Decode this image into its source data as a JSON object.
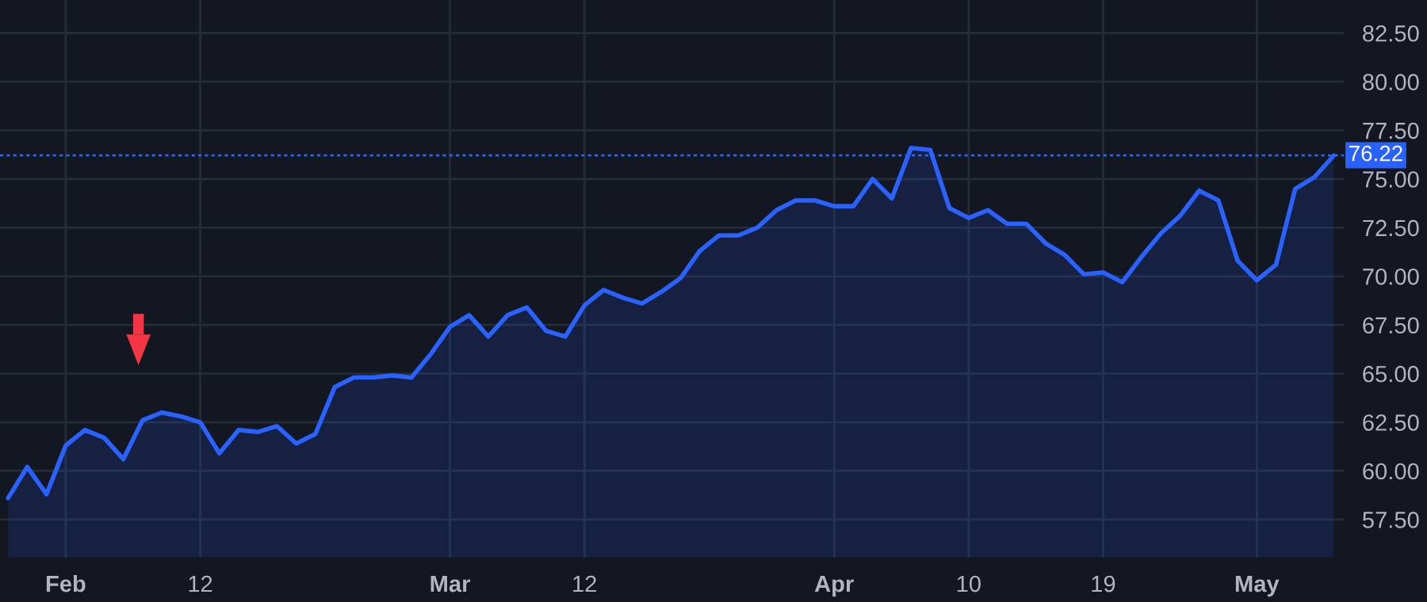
{
  "chart_data": {
    "type": "area",
    "categories": [
      null,
      null,
      null,
      "Feb",
      null,
      null,
      null,
      null,
      null,
      null,
      "12",
      null,
      null,
      null,
      null,
      null,
      null,
      null,
      null,
      null,
      null,
      null,
      null,
      "Mar",
      null,
      null,
      null,
      null,
      null,
      null,
      "12",
      null,
      null,
      null,
      null,
      null,
      null,
      null,
      null,
      null,
      null,
      null,
      null,
      "Apr",
      null,
      null,
      null,
      null,
      null,
      null,
      "10",
      null,
      null,
      null,
      null,
      null,
      null,
      "19",
      null,
      null,
      null,
      null,
      null,
      null,
      null,
      "May",
      null,
      null,
      null,
      null
    ],
    "series": [
      {
        "color": "#2962ff",
        "values": [
          58.6,
          60.2,
          58.8,
          61.3,
          62.1,
          61.7,
          60.6,
          62.6,
          63.0,
          62.8,
          62.5,
          60.9,
          62.1,
          62.0,
          62.3,
          61.4,
          61.9,
          64.3,
          64.8,
          64.8,
          64.9,
          64.8,
          66.0,
          67.4,
          68.0,
          66.9,
          68.0,
          68.4,
          67.2,
          66.9,
          68.5,
          69.3,
          68.9,
          68.6,
          69.2,
          69.9,
          71.3,
          72.1,
          72.1,
          72.5,
          73.4,
          73.9,
          73.9,
          73.6,
          73.6,
          75.0,
          74.0,
          76.6,
          76.5,
          73.5,
          73.0,
          73.4,
          72.7,
          72.7,
          71.7,
          71.1,
          70.1,
          70.2,
          69.7,
          71.0,
          72.2,
          73.1,
          74.4,
          73.9,
          70.8,
          69.8,
          70.6,
          74.5,
          75.1,
          76.2
        ]
      }
    ],
    "ylim": [
      55.55,
      84.2
    ],
    "yticks": [
      {
        "value": 57.5,
        "label": "57.50"
      },
      {
        "value": 60,
        "label": "60.00"
      },
      {
        "value": 62.5,
        "label": "62.50"
      },
      {
        "value": 65,
        "label": "65.00"
      },
      {
        "value": 67.5,
        "label": "67.50"
      },
      {
        "value": 70,
        "label": "70.00"
      },
      {
        "value": 72.5,
        "label": "72.50"
      },
      {
        "value": 75,
        "label": "75.00"
      },
      {
        "value": 77.5,
        "label": "77.50"
      },
      {
        "value": 80,
        "label": "80.00"
      },
      {
        "value": 82.5,
        "label": "82.50"
      }
    ],
    "ref_lines": [
      {
        "axis": "y",
        "value": 76.22,
        "label": "76.22",
        "color": "#2962ff",
        "line_style": "dotted"
      }
    ],
    "grid": true
  }
}
